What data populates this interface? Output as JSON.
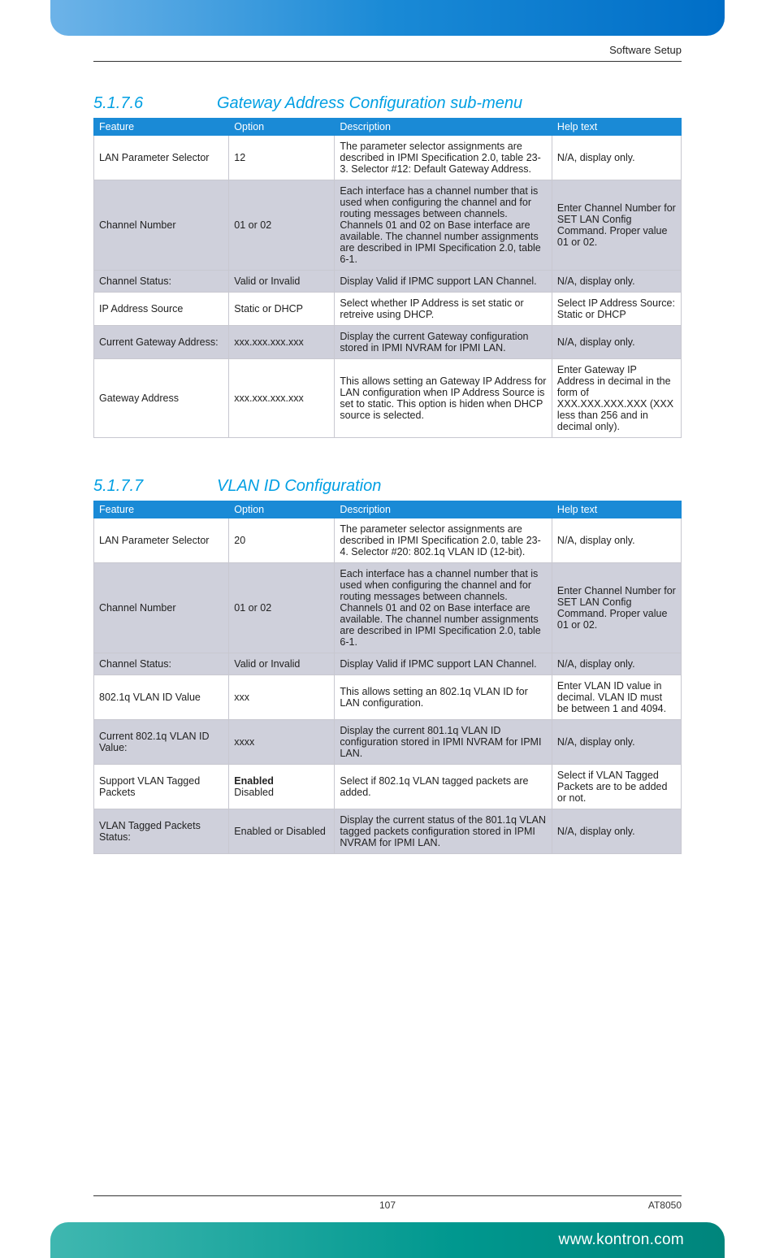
{
  "header": {
    "right_text": "Software Setup"
  },
  "sections": [
    {
      "number": "5.1.7.6",
      "title": "Gateway Address Configuration sub-menu",
      "columns": [
        "Feature",
        "Option",
        "Description",
        "Help text"
      ],
      "rows": [
        {
          "shade": false,
          "cells": [
            "LAN Parameter Selector",
            "12",
            "The parameter selector assignments are described in IPMI Specification 2.0, table 23-3. Selector #12: Default Gateway Address.",
            "N/A, display only."
          ]
        },
        {
          "shade": true,
          "cells": [
            "Channel Number",
            "01 or 02",
            "Each interface has a channel number that is used when configuring the channel and for routing messages between channels. Channels 01 and 02 on Base interface are available. The channel number assignments are described in IPMI Specification 2.0, table 6-1.",
            "Enter Channel Number for SET LAN Config Command. Proper value 01 or 02."
          ]
        },
        {
          "shade": true,
          "cells": [
            "Channel Status:",
            "Valid or Invalid",
            "Display Valid if IPMC support LAN Channel.",
            "N/A, display only."
          ]
        },
        {
          "shade": false,
          "cells": [
            "IP Address Source",
            "Static or DHCP",
            "Select whether IP Address is set static or retreive using DHCP.",
            "Select IP Address Source: Static or DHCP"
          ]
        },
        {
          "shade": true,
          "cells": [
            "Current Gateway Address:",
            "xxx.xxx.xxx.xxx",
            "Display the current Gateway configuration stored in IPMI NVRAM for IPMI LAN.",
            "N/A, display only."
          ]
        },
        {
          "shade": false,
          "cells": [
            "Gateway Address",
            "xxx.xxx.xxx.xxx",
            "This allows setting an Gateway IP Address for LAN configuration when IP Address Source is set to static. This option is hiden when DHCP source is selected.",
            "Enter Gateway IP Address in decimal in the form of XXX.XXX.XXX.XXX (XXX less than 256 and in decimal only)."
          ]
        }
      ]
    },
    {
      "number": "5.1.7.7",
      "title": "VLAN ID Configuration",
      "columns": [
        "Feature",
        "Option",
        "Description",
        "Help text"
      ],
      "rows": [
        {
          "shade": false,
          "cells": [
            "LAN Parameter Selector",
            "20",
            "The parameter selector assignments are described in IPMI Specification 2.0, table 23-4. Selector #20: 802.1q VLAN ID (12-bit).",
            "N/A, display only."
          ]
        },
        {
          "shade": true,
          "cells": [
            "Channel Number",
            "01 or 02",
            "Each interface has a channel number that is used when configuring the channel and for routing messages between channels. Channels 01 and 02 on Base interface are available. The channel number assignments are described in IPMI Specification 2.0, table 6-1.",
            "Enter Channel Number for SET LAN Config Command. Proper value 01 or 02."
          ]
        },
        {
          "shade": true,
          "cells": [
            "Channel Status:",
            "Valid or Invalid",
            "Display Valid if IPMC support LAN Channel.",
            "N/A, display only."
          ]
        },
        {
          "shade": false,
          "cells": [
            "802.1q VLAN ID Value",
            "xxx",
            "This allows setting an 802.1q VLAN ID for LAN configuration.",
            "Enter VLAN ID value in decimal. VLAN ID must be between 1 and 4094."
          ]
        },
        {
          "shade": true,
          "cells": [
            "Current 802.1q VLAN ID Value:",
            "xxxx",
            "Display the current 801.1q VLAN ID configuration stored in IPMI NVRAM for IPMI LAN.",
            "N/A, display only."
          ]
        },
        {
          "shade": false,
          "option_html": "<span class='opt-bold'>Enabled</span><br>Disabled",
          "cells": [
            "Support VLAN Tagged Packets",
            "",
            "Select if 802.1q VLAN tagged packets are added.",
            "Select if VLAN Tagged Packets are to be added or not."
          ]
        },
        {
          "shade": true,
          "cells": [
            "VLAN Tagged Packets Status:",
            "Enabled or Disabled",
            "Display the current status of the 801.1q VLAN tagged packets configuration stored in IPMI NVRAM for IPMI LAN.",
            "N/A, display only."
          ]
        }
      ]
    }
  ],
  "footer": {
    "page": "107",
    "model": "AT8050",
    "url": "www.kontron.com"
  },
  "colors": {
    "heading": "#009fe3",
    "th_bg": "#1a8ad6",
    "shade_bg": "#cfd0db",
    "top_grad_from": "#6db3e8",
    "top_grad_to": "#006ec7",
    "bottom_grad_from": "#3fb7b0",
    "bottom_grad_to": "#00857c"
  }
}
